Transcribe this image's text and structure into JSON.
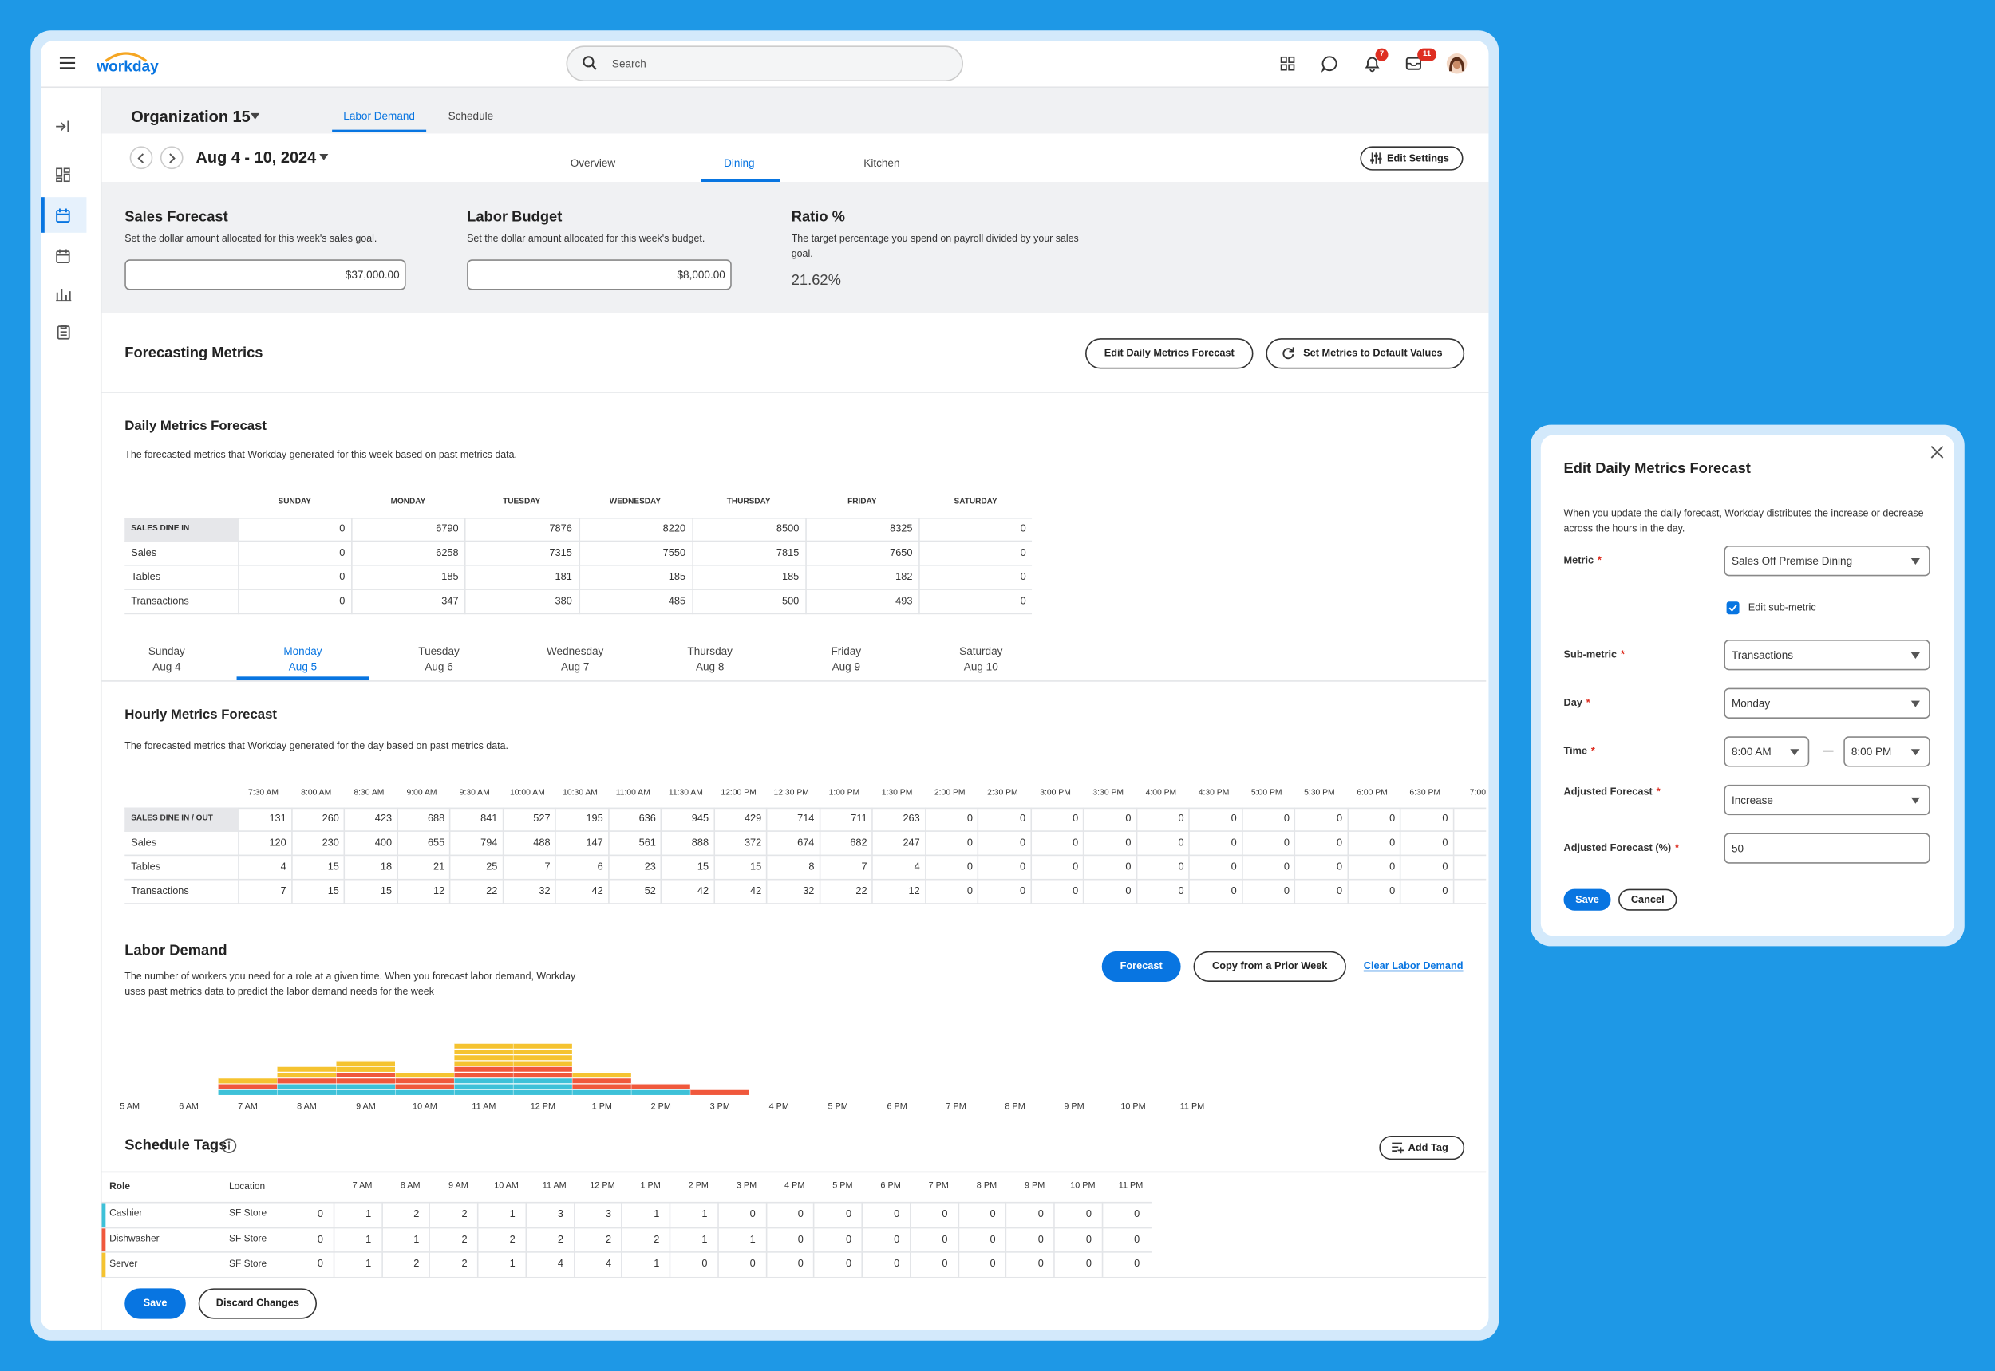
{
  "header": {
    "logo": "workday",
    "search": "Search",
    "notifications": "7",
    "inbox": "11"
  },
  "org": "Organization 15",
  "tabs": [
    "Labor Demand",
    "Schedule"
  ],
  "date_range": "Aug 4 - 10, 2024",
  "subtabs": [
    "Overview",
    "Dining",
    "Kitchen"
  ],
  "edit_settings": "Edit Settings",
  "budget": [
    {
      "title": "Sales Forecast",
      "desc": "Set the dollar amount allocated for this week's sales goal.",
      "value": "$37,000.00"
    },
    {
      "title": "Labor Budget",
      "desc": "Set the dollar amount allocated for this week's budget.",
      "value": "$8,000.00"
    },
    {
      "title": "Ratio %",
      "desc": "The target percentage you spend on payroll divided by your sales goal.",
      "value": "21.62%"
    }
  ],
  "forecasting": {
    "title": "Forecasting Metrics",
    "edit": "Edit Daily Metrics Forecast",
    "reset": "Set Metrics to Default Values"
  },
  "daily": {
    "title": "Daily Metrics Forecast",
    "desc": "The forecasted metrics that Workday generated for this week based on past metrics data.",
    "columns": [
      "SUNDAY",
      "MONDAY",
      "TUESDAY",
      "WEDNESDAY",
      "THURSDAY",
      "FRIDAY",
      "SATURDAY"
    ],
    "rows": [
      {
        "label": "SALES DINE IN",
        "values": [
          0,
          6790,
          7876,
          8220,
          8500,
          8325,
          0
        ]
      },
      {
        "label": "Sales",
        "values": [
          0,
          6258,
          7315,
          7550,
          7815,
          7650,
          0
        ]
      },
      {
        "label": "Tables",
        "values": [
          0,
          185,
          181,
          185,
          185,
          182,
          0
        ]
      },
      {
        "label": "Transactions",
        "values": [
          0,
          347,
          380,
          485,
          500,
          493,
          0
        ]
      }
    ]
  },
  "days": [
    {
      "day": "Sunday",
      "date": "Aug 4"
    },
    {
      "day": "Monday",
      "date": "Aug 5"
    },
    {
      "day": "Tuesday",
      "date": "Aug 6"
    },
    {
      "day": "Wednesday",
      "date": "Aug 7"
    },
    {
      "day": "Thursday",
      "date": "Aug 8"
    },
    {
      "day": "Friday",
      "date": "Aug 9"
    },
    {
      "day": "Saturday",
      "date": "Aug 10"
    }
  ],
  "hourly": {
    "title": "Hourly Metrics Forecast",
    "desc": "The forecasted metrics that Workday generated for the day based on past metrics data.",
    "columns": [
      "7:30 AM",
      "8:00 AM",
      "8:30 AM",
      "9:00 AM",
      "9:30 AM",
      "10:00 AM",
      "10:30 AM",
      "11:00 AM",
      "11:30 AM",
      "12:00 PM",
      "12:30 PM",
      "1:00 PM",
      "1:30 PM",
      "2:00 PM",
      "2:30 PM",
      "3:00 PM",
      "3:30 PM",
      "4:00 PM",
      "4:30 PM",
      "5:00 PM",
      "5:30 PM",
      "6:00 PM",
      "6:30 PM",
      "7:00"
    ],
    "rows": [
      {
        "label": "SALES DINE IN / OUT",
        "values": [
          131,
          260,
          423,
          688,
          841,
          527,
          195,
          636,
          945,
          429,
          714,
          711,
          263,
          0,
          0,
          0,
          0,
          0,
          0,
          0,
          0,
          0,
          0,
          null
        ]
      },
      {
        "label": "Sales",
        "values": [
          120,
          230,
          400,
          655,
          794,
          488,
          147,
          561,
          888,
          372,
          674,
          682,
          247,
          0,
          0,
          0,
          0,
          0,
          0,
          0,
          0,
          0,
          0,
          null
        ]
      },
      {
        "label": "Tables",
        "values": [
          4,
          15,
          18,
          21,
          25,
          7,
          6,
          23,
          15,
          15,
          8,
          7,
          4,
          0,
          0,
          0,
          0,
          0,
          0,
          0,
          0,
          0,
          0,
          null
        ]
      },
      {
        "label": "Transactions",
        "values": [
          7,
          15,
          15,
          12,
          22,
          32,
          42,
          52,
          42,
          42,
          32,
          22,
          12,
          0,
          0,
          0,
          0,
          0,
          0,
          0,
          0,
          0,
          0,
          null
        ]
      }
    ]
  },
  "labor": {
    "title": "Labor Demand",
    "desc": "The number of workers you need for a role at a given time. When you forecast labor demand, Workday uses past metrics data to predict the labor demand needs for the week",
    "forecast": "Forecast",
    "copy": "Copy from a Prior Week",
    "clear": "Clear Labor Demand",
    "chart": {
      "type": "bar",
      "stacked": true,
      "x": [
        "5 AM",
        "6 AM",
        "7 AM",
        "8 AM",
        "9 AM",
        "10 AM",
        "11 AM",
        "12 PM",
        "1 PM",
        "2 PM",
        "3 PM",
        "4 PM",
        "5 PM",
        "6 PM",
        "7 PM",
        "8 PM",
        "9 PM",
        "10 PM",
        "11 PM"
      ]
    }
  },
  "tags": {
    "title": "Schedule Tags",
    "add": "Add Tag",
    "role_header": "Role",
    "location_header": "Location",
    "hours": [
      null,
      "7 AM",
      "8 AM",
      "9 AM",
      "10 AM",
      "11 AM",
      "12 PM",
      "1 PM",
      "2 PM",
      "3 PM",
      "4 PM",
      "5 PM",
      "6 PM",
      "7 PM",
      "8 PM",
      "9 PM",
      "10 PM",
      "11 PM"
    ],
    "rows": [
      {
        "role": "Cashier",
        "location": "SF Store",
        "color": "#3ec1d8",
        "values": [
          0,
          1,
          2,
          2,
          1,
          3,
          3,
          1,
          1,
          0,
          0,
          0,
          0,
          0,
          0,
          0,
          0,
          0
        ]
      },
      {
        "role": "Dishwasher",
        "location": "SF Store",
        "color": "#f0583c",
        "values": [
          0,
          1,
          1,
          2,
          2,
          2,
          2,
          2,
          1,
          1,
          0,
          0,
          0,
          0,
          0,
          0,
          0,
          0
        ]
      },
      {
        "role": "Server",
        "location": "SF Store",
        "color": "#f5c330",
        "values": [
          0,
          1,
          2,
          2,
          1,
          4,
          4,
          1,
          0,
          0,
          0,
          0,
          0,
          0,
          0,
          0,
          0,
          0
        ]
      }
    ]
  },
  "footer": {
    "save": "Save",
    "discard": "Discard Changes"
  },
  "dialog": {
    "title": "Edit Daily Metrics Forecast",
    "desc": "When you update the daily forecast, Workday distributes the increase or decrease  across the hours in the day.",
    "required_mark": "*",
    "metric": {
      "label": "Metric",
      "value": "Sales Off Premise Dining"
    },
    "checkbox": "Edit sub-metric",
    "submetric": {
      "label": "Sub-metric",
      "value": "Transactions"
    },
    "day": {
      "label": "Day",
      "value": "Monday"
    },
    "time": {
      "label": "Time",
      "from": "8:00 AM",
      "to": "8:00 PM"
    },
    "adjusted": {
      "label": "Adjusted Forecast",
      "value": "Increase"
    },
    "percent": {
      "label": "Adjusted Forecast (%)",
      "value": "50"
    },
    "save": "Save",
    "cancel": "Cancel"
  }
}
